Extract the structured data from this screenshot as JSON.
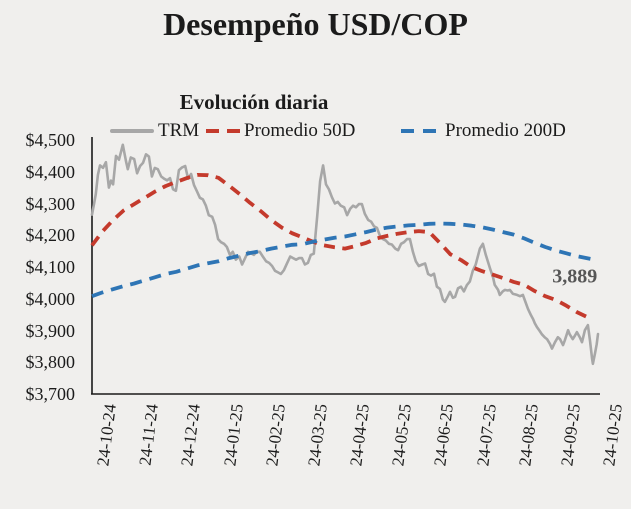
{
  "title": "Desempeño USD/COP",
  "chart_data": {
    "type": "line",
    "title": "Evolución diaria",
    "xlabel": "",
    "ylabel": "",
    "grid": false,
    "legend_position": "top",
    "background_color": "#f0efed",
    "axis_color": "#1a1a1a",
    "y_axis": {
      "min": 3700,
      "max": 4500,
      "step": 100,
      "tick_prefix": "$"
    },
    "x_ticks": [
      "24-10-24",
      "24-11-24",
      "24-12-24",
      "24-01-25",
      "24-02-25",
      "24-03-25",
      "24-04-25",
      "24-05-25",
      "24-06-25",
      "24-07-25",
      "24-08-25",
      "24-09-25",
      "24-10-25"
    ],
    "annotation": {
      "text": "3,889",
      "x": 11.45,
      "value": 4068,
      "color": "#575757"
    },
    "series": [
      {
        "name": "TRM",
        "color": "#a7a7a7",
        "style": "solid",
        "width": 2.6,
        "points": [
          [
            0,
            4265
          ],
          [
            0.05,
            4300
          ],
          [
            0.09,
            4330
          ],
          [
            0.14,
            4390
          ],
          [
            0.19,
            4420
          ],
          [
            0.26,
            4412
          ],
          [
            0.33,
            4430
          ],
          [
            0.4,
            4350
          ],
          [
            0.45,
            4372
          ],
          [
            0.5,
            4360
          ],
          [
            0.57,
            4450
          ],
          [
            0.64,
            4438
          ],
          [
            0.73,
            4485
          ],
          [
            0.81,
            4430
          ],
          [
            0.85,
            4408
          ],
          [
            0.92,
            4445
          ],
          [
            1,
            4440
          ],
          [
            1.07,
            4395
          ],
          [
            1.14,
            4418
          ],
          [
            1.21,
            4428
          ],
          [
            1.28,
            4455
          ],
          [
            1.35,
            4448
          ],
          [
            1.42,
            4385
          ],
          [
            1.49,
            4412
          ],
          [
            1.56,
            4408
          ],
          [
            1.64,
            4385
          ],
          [
            1.71,
            4378
          ],
          [
            1.78,
            4373
          ],
          [
            1.85,
            4380
          ],
          [
            1.92,
            4345
          ],
          [
            1.99,
            4340
          ],
          [
            2.06,
            4405
          ],
          [
            2.13,
            4413
          ],
          [
            2.21,
            4418
          ],
          [
            2.28,
            4378
          ],
          [
            2.35,
            4393
          ],
          [
            2.42,
            4358
          ],
          [
            2.49,
            4338
          ],
          [
            2.56,
            4318
          ],
          [
            2.63,
            4313
          ],
          [
            2.7,
            4293
          ],
          [
            2.77,
            4263
          ],
          [
            2.85,
            4258
          ],
          [
            2.92,
            4233
          ],
          [
            2.99,
            4188
          ],
          [
            3.06,
            4178
          ],
          [
            3.13,
            4173
          ],
          [
            3.2,
            4163
          ],
          [
            3.27,
            4138
          ],
          [
            3.34,
            4148
          ],
          [
            3.41,
            4123
          ],
          [
            3.49,
            4133
          ],
          [
            3.56,
            4108
          ],
          [
            3.63,
            4128
          ],
          [
            3.7,
            4148
          ],
          [
            3.77,
            4143
          ],
          [
            3.84,
            4138
          ],
          [
            3.91,
            4148
          ],
          [
            3.98,
            4148
          ],
          [
            4.05,
            4133
          ],
          [
            4.13,
            4118
          ],
          [
            4.2,
            4113
          ],
          [
            4.27,
            4103
          ],
          [
            4.34,
            4088
          ],
          [
            4.41,
            4083
          ],
          [
            4.48,
            4078
          ],
          [
            4.55,
            4090
          ],
          [
            4.62,
            4110
          ],
          [
            4.7,
            4133
          ],
          [
            4.77,
            4128
          ],
          [
            4.84,
            4123
          ],
          [
            4.91,
            4128
          ],
          [
            4.98,
            4128
          ],
          [
            5.05,
            4108
          ],
          [
            5.12,
            4113
          ],
          [
            5.19,
            4138
          ],
          [
            5.26,
            4142
          ],
          [
            5.34,
            4260
          ],
          [
            5.41,
            4370
          ],
          [
            5.48,
            4420
          ],
          [
            5.55,
            4360
          ],
          [
            5.62,
            4344
          ],
          [
            5.69,
            4320
          ],
          [
            5.76,
            4300
          ],
          [
            5.83,
            4305
          ],
          [
            5.9,
            4293
          ],
          [
            5.98,
            4288
          ],
          [
            6.05,
            4263
          ],
          [
            6.12,
            4283
          ],
          [
            6.19,
            4293
          ],
          [
            6.26,
            4288
          ],
          [
            6.33,
            4298
          ],
          [
            6.4,
            4298
          ],
          [
            6.47,
            4268
          ],
          [
            6.55,
            4248
          ],
          [
            6.62,
            4243
          ],
          [
            6.69,
            4228
          ],
          [
            6.76,
            4223
          ],
          [
            6.83,
            4198
          ],
          [
            6.9,
            4188
          ],
          [
            6.97,
            4183
          ],
          [
            7.04,
            4173
          ],
          [
            7.11,
            4171
          ],
          [
            7.19,
            4158
          ],
          [
            7.26,
            4153
          ],
          [
            7.33,
            4173
          ],
          [
            7.4,
            4178
          ],
          [
            7.47,
            4188
          ],
          [
            7.54,
            4188
          ],
          [
            7.61,
            4148
          ],
          [
            7.68,
            4118
          ],
          [
            7.75,
            4103
          ],
          [
            7.83,
            4108
          ],
          [
            7.9,
            4111
          ],
          [
            7.97,
            4078
          ],
          [
            8.04,
            4073
          ],
          [
            8.11,
            4079
          ],
          [
            8.18,
            4038
          ],
          [
            8.25,
            4031
          ],
          [
            8.32,
            3998
          ],
          [
            8.37,
            3990
          ],
          [
            8.44,
            4008
          ],
          [
            8.49,
            4022
          ],
          [
            8.56,
            4003
          ],
          [
            8.61,
            4006
          ],
          [
            8.68,
            4033
          ],
          [
            8.75,
            4038
          ],
          [
            8.82,
            4023
          ],
          [
            8.89,
            4043
          ],
          [
            8.96,
            4054
          ],
          [
            9.03,
            4088
          ],
          [
            9.1,
            4108
          ],
          [
            9.2,
            4158
          ],
          [
            9.27,
            4173
          ],
          [
            9.34,
            4138
          ],
          [
            9.44,
            4095
          ],
          [
            9.51,
            4068
          ],
          [
            9.55,
            4044
          ],
          [
            9.63,
            4028
          ],
          [
            9.67,
            4012
          ],
          [
            9.74,
            4023
          ],
          [
            9.79,
            4028
          ],
          [
            9.86,
            4026
          ],
          [
            9.91,
            4028
          ],
          [
            9.98,
            4016
          ],
          [
            10.08,
            4012
          ],
          [
            10.15,
            4008
          ],
          [
            10.22,
            4012
          ],
          [
            10.27,
            3993
          ],
          [
            10.34,
            3968
          ],
          [
            10.41,
            3948
          ],
          [
            10.46,
            3936
          ],
          [
            10.5,
            3923
          ],
          [
            10.55,
            3911
          ],
          [
            10.62,
            3898
          ],
          [
            10.67,
            3888
          ],
          [
            10.74,
            3878
          ],
          [
            10.79,
            3873
          ],
          [
            10.86,
            3858
          ],
          [
            10.91,
            3843
          ],
          [
            10.98,
            3863
          ],
          [
            11.05,
            3879
          ],
          [
            11.1,
            3873
          ],
          [
            11.17,
            3854
          ],
          [
            11.21,
            3868
          ],
          [
            11.29,
            3901
          ],
          [
            11.33,
            3888
          ],
          [
            11.4,
            3873
          ],
          [
            11.45,
            3883
          ],
          [
            11.5,
            3895
          ],
          [
            11.57,
            3878
          ],
          [
            11.62,
            3863
          ],
          [
            11.69,
            3901
          ],
          [
            11.76,
            3917
          ],
          [
            11.81,
            3868
          ],
          [
            11.86,
            3811
          ],
          [
            11.88,
            3795
          ],
          [
            11.93,
            3828
          ],
          [
            11.97,
            3857
          ],
          [
            12,
            3889
          ]
        ]
      },
      {
        "name": "Promedio 50D",
        "color": "#c43a2c",
        "style": "dashed",
        "dash": "11 7.5",
        "width": 3.8,
        "points": [
          [
            0,
            4168
          ],
          [
            0.25,
            4212
          ],
          [
            0.5,
            4248
          ],
          [
            0.75,
            4278
          ],
          [
            1,
            4298
          ],
          [
            1.25,
            4318
          ],
          [
            1.5,
            4338
          ],
          [
            1.75,
            4355
          ],
          [
            2,
            4368
          ],
          [
            2.25,
            4380
          ],
          [
            2.5,
            4390
          ],
          [
            2.75,
            4389
          ],
          [
            3,
            4381
          ],
          [
            3.25,
            4356
          ],
          [
            3.5,
            4330
          ],
          [
            3.75,
            4302
          ],
          [
            4,
            4276
          ],
          [
            4.25,
            4248
          ],
          [
            4.5,
            4224
          ],
          [
            4.75,
            4206
          ],
          [
            5,
            4193
          ],
          [
            5.25,
            4179
          ],
          [
            5.5,
            4168
          ],
          [
            5.75,
            4162
          ],
          [
            6,
            4158
          ],
          [
            6.25,
            4166
          ],
          [
            6.5,
            4176
          ],
          [
            6.75,
            4190
          ],
          [
            7,
            4198
          ],
          [
            7.25,
            4205
          ],
          [
            7.5,
            4210
          ],
          [
            7.75,
            4213
          ],
          [
            8,
            4210
          ],
          [
            8.25,
            4176
          ],
          [
            8.5,
            4140
          ],
          [
            8.75,
            4122
          ],
          [
            9,
            4100
          ],
          [
            9.25,
            4087
          ],
          [
            9.5,
            4076
          ],
          [
            9.75,
            4065
          ],
          [
            10,
            4053
          ],
          [
            10.25,
            4044
          ],
          [
            10.5,
            4024
          ],
          [
            10.75,
            4008
          ],
          [
            11,
            3996
          ],
          [
            11.25,
            3978
          ],
          [
            11.5,
            3958
          ],
          [
            11.86,
            3935
          ]
        ]
      },
      {
        "name": "Promedio 200D",
        "color": "#2e75b5",
        "style": "dashed",
        "dash": "12 8",
        "width": 3.8,
        "points": [
          [
            0,
            4008
          ],
          [
            0.25,
            4020
          ],
          [
            0.5,
            4030
          ],
          [
            0.75,
            4040
          ],
          [
            1,
            4048
          ],
          [
            1.25,
            4058
          ],
          [
            1.5,
            4068
          ],
          [
            1.75,
            4078
          ],
          [
            2,
            4085
          ],
          [
            2.25,
            4095
          ],
          [
            2.5,
            4105
          ],
          [
            2.75,
            4112
          ],
          [
            3,
            4118
          ],
          [
            3.25,
            4128
          ],
          [
            3.5,
            4136
          ],
          [
            3.75,
            4144
          ],
          [
            4,
            4150
          ],
          [
            4.25,
            4158
          ],
          [
            4.5,
            4164
          ],
          [
            4.75,
            4170
          ],
          [
            5,
            4172
          ],
          [
            5.25,
            4180
          ],
          [
            5.5,
            4186
          ],
          [
            5.75,
            4192
          ],
          [
            6,
            4196
          ],
          [
            6.25,
            4203
          ],
          [
            6.5,
            4210
          ],
          [
            6.75,
            4218
          ],
          [
            7,
            4224
          ],
          [
            7.25,
            4228
          ],
          [
            7.5,
            4231
          ],
          [
            7.75,
            4233
          ],
          [
            8,
            4236
          ],
          [
            8.25,
            4237
          ],
          [
            8.5,
            4236
          ],
          [
            8.75,
            4234
          ],
          [
            9,
            4230
          ],
          [
            9.25,
            4225
          ],
          [
            9.5,
            4218
          ],
          [
            9.75,
            4210
          ],
          [
            10,
            4202
          ],
          [
            10.25,
            4190
          ],
          [
            10.5,
            4176
          ],
          [
            10.75,
            4163
          ],
          [
            11,
            4152
          ],
          [
            11.25,
            4143
          ],
          [
            11.5,
            4134
          ],
          [
            11.85,
            4125
          ]
        ]
      }
    ]
  }
}
